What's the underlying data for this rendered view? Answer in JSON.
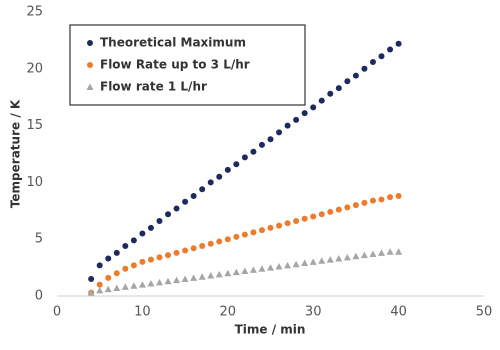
{
  "chart_data": {
    "type": "scatter",
    "xlabel": "Time / min",
    "ylabel": "Temperature / K",
    "x": [
      4,
      5,
      6,
      7,
      8,
      9,
      10,
      11,
      12,
      13,
      14,
      15,
      16,
      17,
      18,
      19,
      20,
      21,
      22,
      23,
      24,
      25,
      26,
      27,
      28,
      29,
      30,
      31,
      32,
      33,
      34,
      35,
      36,
      37,
      38,
      39,
      40
    ],
    "series": [
      {
        "name": "Theoretical Maximum",
        "color": "#1c2a5e",
        "marker": "circle",
        "values": [
          1.5,
          2.7,
          3.3,
          3.8,
          4.4,
          4.9,
          5.5,
          6.0,
          6.6,
          7.2,
          7.7,
          8.3,
          8.8,
          9.4,
          10.0,
          10.5,
          11.1,
          11.6,
          12.2,
          12.7,
          13.3,
          13.8,
          14.4,
          15.0,
          15.5,
          16.1,
          16.6,
          17.2,
          17.8,
          18.3,
          18.9,
          19.4,
          20.0,
          20.6,
          21.1,
          21.7,
          22.2
        ]
      },
      {
        "name": "Flow Rate up to 3 L/hr",
        "color": "#ef7a2b",
        "marker": "circle",
        "values": [
          0.3,
          1.0,
          1.6,
          2.0,
          2.4,
          2.7,
          3.0,
          3.2,
          3.4,
          3.6,
          3.8,
          4.0,
          4.2,
          4.4,
          4.6,
          4.8,
          5.0,
          5.2,
          5.4,
          5.6,
          5.8,
          6.0,
          6.2,
          6.4,
          6.6,
          6.8,
          7.0,
          7.2,
          7.4,
          7.6,
          7.8,
          8.0,
          8.2,
          8.4,
          8.5,
          8.7,
          8.8
        ]
      },
      {
        "name": "Flow rate 1 L/hr",
        "color": "#a6a6a6",
        "marker": "triangle",
        "values": [
          0.3,
          0.5,
          0.6,
          0.7,
          0.8,
          0.9,
          1.0,
          1.1,
          1.2,
          1.3,
          1.4,
          1.5,
          1.6,
          1.7,
          1.8,
          1.9,
          2.0,
          2.1,
          2.2,
          2.3,
          2.4,
          2.5,
          2.6,
          2.7,
          2.8,
          2.9,
          3.0,
          3.1,
          3.2,
          3.3,
          3.4,
          3.5,
          3.6,
          3.7,
          3.8,
          3.9,
          3.9
        ]
      }
    ],
    "xlim": [
      0,
      50
    ],
    "xticks": [
      0,
      10,
      20,
      30,
      40,
      50
    ],
    "ylim": [
      0,
      25
    ],
    "yticks": [
      0,
      5,
      10,
      15,
      20,
      25
    ],
    "grid": false,
    "legend": "upper left"
  }
}
